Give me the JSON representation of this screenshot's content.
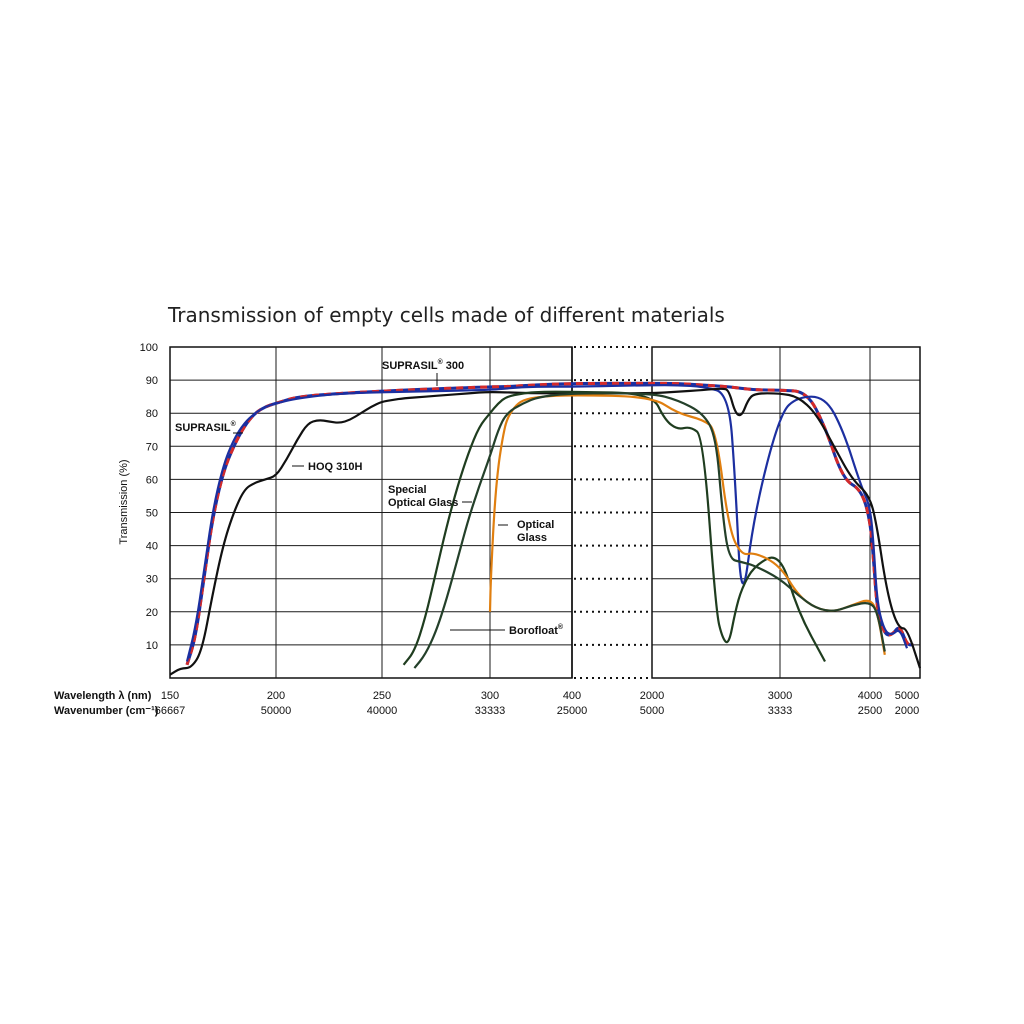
{
  "chart_data": {
    "type": "line",
    "title": "Transmission of empty cells made of different materials",
    "ylabel": "Transmission (%)",
    "ylim": [
      0,
      100
    ],
    "yticks": [
      "10",
      "20",
      "30",
      "40",
      "50",
      "60",
      "70",
      "80",
      "90",
      "100"
    ],
    "x_rows": {
      "wavelength_label": "Wavelength  λ (nm)",
      "wavenumber_label": "Wavenumber (cm⁻¹)",
      "wavelength_ticks": [
        "150",
        "200",
        "250",
        "300",
        "400",
        "2000",
        "3000",
        "4000",
        "5000"
      ],
      "wavenumber_ticks": [
        "66667",
        "50000",
        "40000",
        "33333",
        "25000",
        "5000",
        "3333",
        "2500",
        "2000"
      ]
    },
    "annotations": {
      "suprasil": "SUPRASIL",
      "suprasil300_a": "SUPRASIL",
      "suprasil300_b": "300",
      "hoq": "HOQ 310H",
      "special_1": "Special",
      "special_2": "Optical Glass",
      "optical_1": "Optical",
      "optical_2": "Glass",
      "borofloat": "Borofloat",
      "reg": "®"
    },
    "series": [
      {
        "name": "SUPRASIL 300",
        "color": "#d42a2a",
        "dashed_with": "#1c2fa0",
        "x": [
          158,
          162,
          166,
          170,
          175,
          180,
          185,
          190,
          195,
          200,
          210,
          230,
          260,
          300,
          320,
          350,
          400,
          2000,
          2200,
          2400,
          2600,
          2800,
          3000,
          3300,
          3500,
          3700,
          3900,
          4000,
          4100,
          4200,
          4400,
          4600,
          4800,
          5000,
          5100
        ],
        "y": [
          4,
          12,
          30,
          48,
          62,
          70,
          76,
          80,
          82,
          83,
          85,
          86,
          87,
          88,
          88,
          88.5,
          89,
          89,
          89,
          88.5,
          88,
          87,
          87,
          86.5,
          76,
          60,
          57,
          48,
          35,
          20,
          13,
          13,
          16,
          10,
          10
        ]
      },
      {
        "name": "SUPRASIL",
        "color": "#1c2fa0",
        "x": [
          158,
          162,
          166,
          170,
          175,
          180,
          185,
          190,
          195,
          200,
          210,
          230,
          260,
          300,
          320,
          350,
          400,
          2000,
          2200,
          2400,
          2600,
          2650,
          2700,
          2800,
          3000,
          3200,
          3500,
          3700,
          3900,
          4000,
          4100,
          4200,
          4400,
          4600,
          4800,
          5000
        ],
        "y": [
          5,
          15,
          32,
          50,
          64,
          72,
          77,
          80,
          82,
          83,
          84.5,
          86,
          86.5,
          87,
          87.5,
          88,
          88,
          88.5,
          88.5,
          88,
          86,
          60,
          20,
          50,
          80,
          85,
          85,
          75,
          58,
          52,
          40,
          22,
          14,
          13,
          15,
          9
        ]
      },
      {
        "name": "HOQ 310H",
        "color": "#111111",
        "x": [
          150,
          155,
          160,
          165,
          170,
          175,
          180,
          185,
          190,
          195,
          200,
          205,
          210,
          215,
          220,
          225,
          230,
          235,
          240,
          245,
          250,
          255,
          260,
          270,
          280,
          290,
          300,
          350,
          400,
          2000,
          2200,
          2400,
          2550,
          2600,
          2650,
          2700,
          2750,
          2800,
          3000,
          3200,
          3400,
          3600,
          3800,
          4000,
          4200,
          4400,
          4600,
          4800,
          5000,
          5200
        ],
        "y": [
          1,
          3,
          3,
          8,
          25,
          40,
          50,
          57,
          59,
          60,
          61,
          66,
          72,
          77,
          78,
          77.5,
          77,
          78,
          80,
          82,
          83.5,
          84,
          84.5,
          85,
          85.5,
          86,
          86.5,
          86,
          86,
          86,
          86.5,
          87,
          87.5,
          87,
          80,
          79,
          84,
          86,
          86,
          85,
          80,
          70,
          60,
          55,
          45,
          30,
          20,
          15,
          15,
          3
        ]
      },
      {
        "name": "Special Optical Glass",
        "color": "#1f3d1f",
        "x": [
          260,
          265,
          270,
          275,
          280,
          285,
          290,
          295,
          300,
          310,
          320,
          340,
          360,
          400,
          2000,
          2100,
          2200,
          2300,
          2400,
          2500,
          2550,
          2600,
          2650,
          2700,
          2800,
          3000,
          3200,
          3500
        ],
        "y": [
          4,
          8,
          18,
          32,
          46,
          58,
          68,
          76,
          80,
          83,
          85,
          86,
          86.5,
          86.5,
          86,
          78,
          75,
          76,
          73,
          20,
          12,
          10,
          20,
          27,
          34,
          38,
          20,
          5
        ]
      },
      {
        "name": "Optical Glass",
        "color": "#e07f10",
        "x": [
          300,
          301,
          305,
          310,
          315,
          320,
          330,
          340,
          360,
          400,
          2000,
          2200,
          2400,
          2500,
          2600,
          2700,
          2800,
          3000,
          3200,
          3400,
          3600,
          3800,
          4000,
          4200,
          4400
        ],
        "y": [
          20,
          30,
          50,
          64,
          72,
          78,
          82,
          84,
          85,
          85.5,
          85,
          80,
          78,
          75,
          45,
          37,
          38,
          34,
          25,
          21,
          20,
          22,
          24,
          20,
          7
        ]
      },
      {
        "name": "Borofloat",
        "color": "#24402a",
        "x": [
          265,
          270,
          275,
          280,
          285,
          290,
          295,
          300,
          310,
          320,
          340,
          360,
          400,
          2000,
          2200,
          2400,
          2500,
          2550,
          2600,
          2700,
          2800,
          3000,
          3200,
          3400,
          3600,
          3800,
          4000,
          4200,
          4400
        ],
        "y": [
          3,
          7,
          14,
          24,
          36,
          48,
          58,
          67,
          75,
          80,
          83,
          85,
          86,
          86,
          84,
          80,
          73,
          50,
          36,
          35,
          34,
          30,
          25,
          21,
          20,
          22,
          23,
          20,
          8
        ]
      }
    ]
  }
}
